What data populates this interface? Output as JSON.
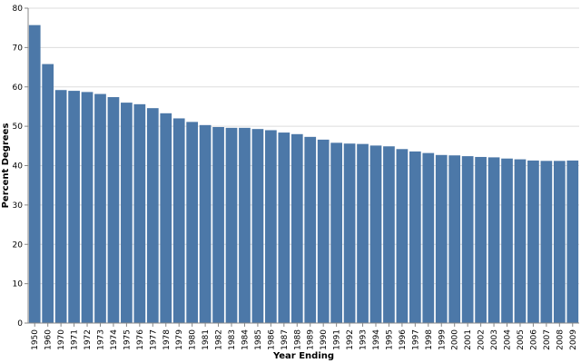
{
  "chart_data": {
    "type": "bar",
    "xlabel": "Year Ending",
    "ylabel": "Percent Degrees",
    "ylim": [
      0,
      80
    ],
    "yticks": [
      0,
      10,
      20,
      30,
      40,
      50,
      60,
      70,
      80
    ],
    "grid": true,
    "bar_color": "#4c78a8",
    "categories": [
      "1950",
      "1960",
      "1970",
      "1971",
      "1972",
      "1973",
      "1974",
      "1975",
      "1976",
      "1977",
      "1978",
      "1979",
      "1980",
      "1981",
      "1982",
      "1983",
      "1984",
      "1985",
      "1986",
      "1987",
      "1988",
      "1989",
      "1990",
      "1991",
      "1992",
      "1993",
      "1994",
      "1995",
      "1996",
      "1997",
      "1998",
      "1999",
      "2000",
      "2001",
      "2002",
      "2003",
      "2004",
      "2005",
      "2006",
      "2007",
      "2008",
      "2009"
    ],
    "values": [
      75.7,
      65.8,
      59.2,
      59.0,
      58.7,
      58.2,
      57.4,
      56.0,
      55.6,
      54.6,
      53.3,
      52.0,
      51.1,
      50.3,
      49.8,
      49.6,
      49.6,
      49.3,
      49.0,
      48.4,
      48.0,
      47.3,
      46.6,
      45.8,
      45.6,
      45.5,
      45.1,
      44.9,
      44.2,
      43.6,
      43.2,
      42.7,
      42.6,
      42.4,
      42.2,
      42.1,
      41.8,
      41.6,
      41.3,
      41.2,
      41.2,
      41.3
    ]
  }
}
